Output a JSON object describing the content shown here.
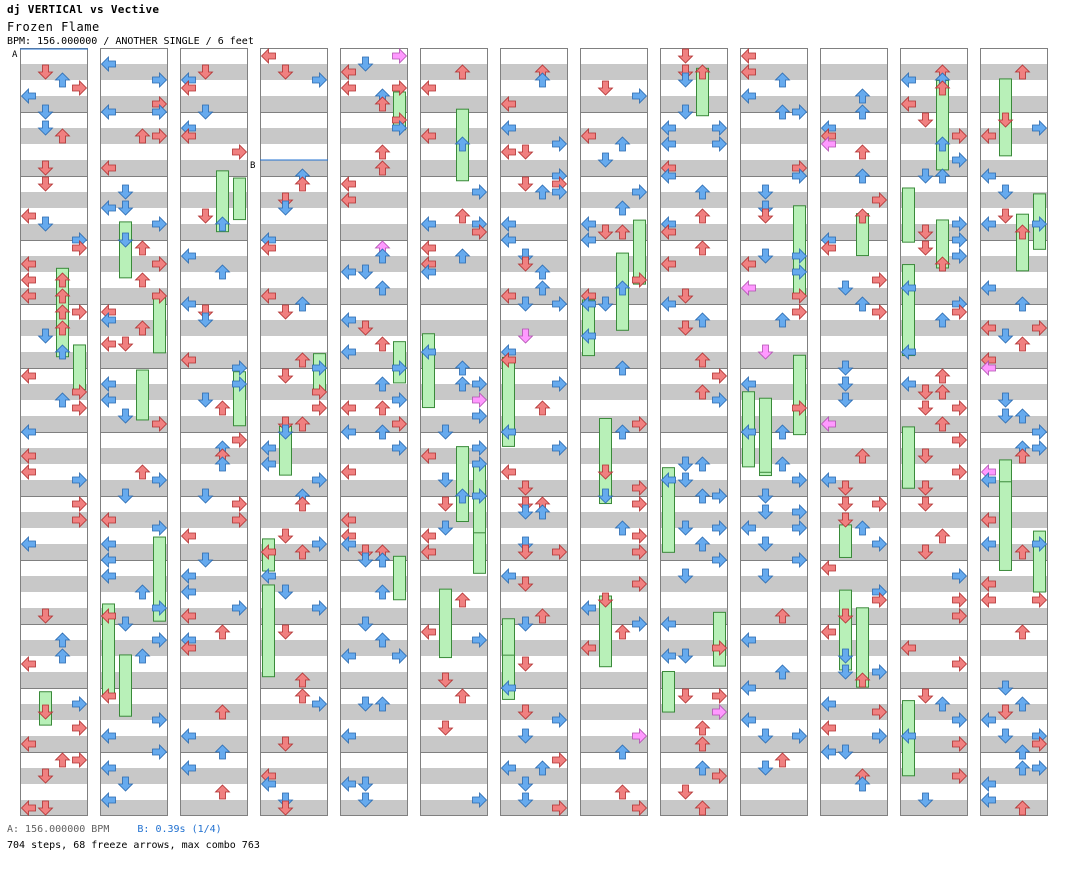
{
  "header": {
    "title": "dj VERTICAl vs Vective",
    "song": "Frozen Flame",
    "info": "BPM: 156.000000 / ANOTHER SINGLE / 6 feet"
  },
  "markers": {
    "a": "A",
    "b": "B"
  },
  "footer": {
    "bpm_note": "A: 156.000000 BPM",
    "stop_note": "B: 0.39s (1/4)",
    "stats": "704 steps, 68 freeze arrows, max combo 763"
  },
  "colors": {
    "quarter": "#f08080",
    "eighth": "#66aaee",
    "sixteenth": "#ff99ff",
    "freeze": "#b8f0b8",
    "stripe": "#c8c8c8"
  },
  "chart_data": {
    "type": "table",
    "columns": 13,
    "measures_per_column": 12,
    "total_steps": 704,
    "freeze_arrows": 68,
    "max_combo": 763,
    "bpm": 156.0,
    "stop_seconds": 0.39
  }
}
